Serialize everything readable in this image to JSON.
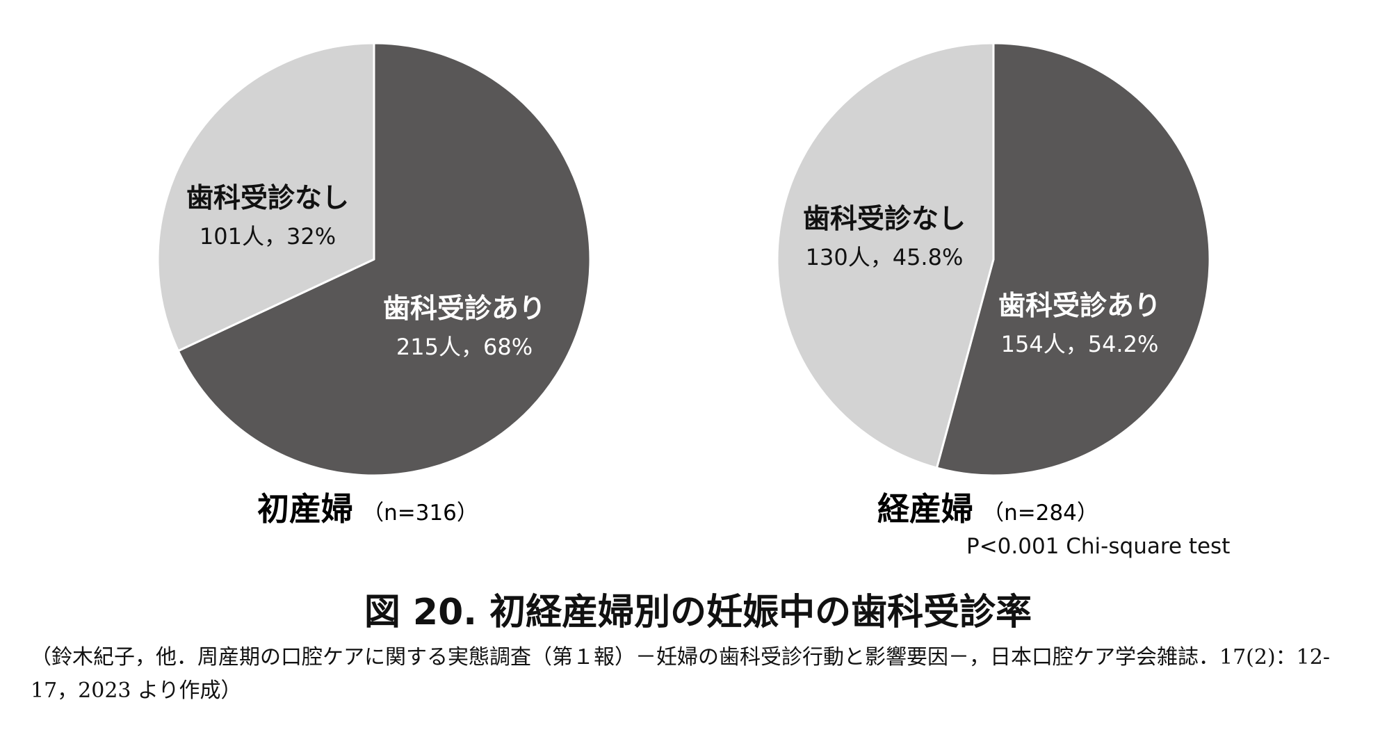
{
  "chart_data": [
    {
      "type": "pie",
      "title": "初産婦",
      "subtitle": "（n=316）",
      "start": "12 o'clock, clockwise",
      "slices": [
        {
          "label": "歯科受診あり",
          "count_label": "215人，68%",
          "count": 215,
          "percent": 68,
          "color": "#595757"
        },
        {
          "label": "歯科受診なし",
          "count_label": "101人，32%",
          "count": 101,
          "percent": 32,
          "color": "#d3d3d3"
        }
      ]
    },
    {
      "type": "pie",
      "title": "経産婦",
      "subtitle": "（n=284）",
      "start": "12 o'clock, clockwise",
      "slices": [
        {
          "label": "歯科受診あり",
          "count_label": "154人，54.2%",
          "count": 154,
          "percent": 54.2,
          "color": "#595757"
        },
        {
          "label": "歯科受診なし",
          "count_label": "130人，45.8%",
          "count": 130,
          "percent": 45.8,
          "color": "#d3d3d3"
        }
      ]
    }
  ],
  "stat_note": "P<0.001 Chi-square test",
  "figure_caption": "図 20.  初経産婦別の妊娠中の歯科受診率",
  "figure_source": "（鈴木紀子，他．周産期の口腔ケアに関する実態調査（第１報）－妊婦の歯科受診行動と影響要因－，日本口腔ケア学会雑誌．17(2)：12-17，2023 より作成）"
}
